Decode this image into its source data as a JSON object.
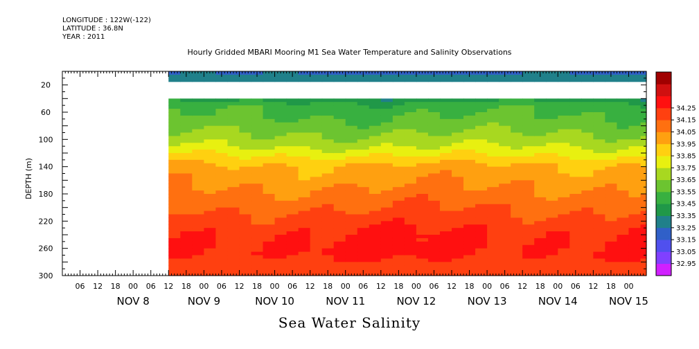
{
  "header": {
    "longitude": "LONGITUDE : 122W(-122)",
    "latitude": "LATITUDE : 36.8N",
    "year": "YEAR : 2011"
  },
  "chart_data": {
    "type": "heatmap",
    "title": "Hourly Gridded MBARI Mooring M1 Sea Water Temperature and Salinity Observations",
    "variable": "Sea Water Salinity",
    "ylabel": "DEPTH (m)",
    "ylim": [
      0,
      300
    ],
    "y_inverted": true,
    "y_ticks": [
      20,
      60,
      100,
      140,
      180,
      220,
      260,
      300
    ],
    "x_range": [
      "2011-11-07 00:00",
      "2011-11-15 06:00"
    ],
    "x_hour_labels": [
      "06",
      "12",
      "18",
      "00",
      "06",
      "12",
      "18",
      "00",
      "06",
      "12",
      "18",
      "00",
      "06",
      "12",
      "18",
      "00",
      "06",
      "12",
      "18",
      "00",
      "06",
      "12",
      "18",
      "00",
      "06",
      "12",
      "18",
      "00",
      "06",
      "12",
      "18",
      "00"
    ],
    "x_day_labels": [
      "NOV  8",
      "NOV  9",
      "NOV 10",
      "NOV 11",
      "NOV 12",
      "NOV 13",
      "NOV 14",
      "NOV 15"
    ],
    "data_start": "2011-11-08 12:00",
    "colorbar": {
      "levels": [
        32.95,
        33.05,
        33.15,
        33.25,
        33.35,
        33.45,
        33.55,
        33.65,
        33.75,
        33.85,
        33.95,
        34.05,
        34.15,
        34.25
      ],
      "colors": [
        "#d020ff",
        "#8040ff",
        "#5050ee",
        "#3060c8",
        "#20808a",
        "#209848",
        "#38b040",
        "#6cc430",
        "#a8d820",
        "#e8f010",
        "#ffd010",
        "#ffa010",
        "#ff7010",
        "#ff4010",
        "#ff1010",
        "#d01010",
        "#a00000"
      ]
    },
    "profile": {
      "depth": [
        0,
        10,
        20,
        40,
        50,
        60,
        80,
        100,
        110,
        120,
        130,
        140,
        160,
        180,
        200,
        220,
        240,
        270,
        285,
        300
      ],
      "salinity": [
        33.22,
        33.3,
        33.3,
        33.38,
        33.5,
        33.53,
        33.6,
        33.69,
        33.74,
        33.82,
        33.9,
        33.97,
        34.02,
        34.08,
        34.14,
        34.2,
        34.26,
        34.26,
        34.21,
        34.2
      ]
    },
    "data_gap_depth": [
      15,
      40
    ]
  }
}
